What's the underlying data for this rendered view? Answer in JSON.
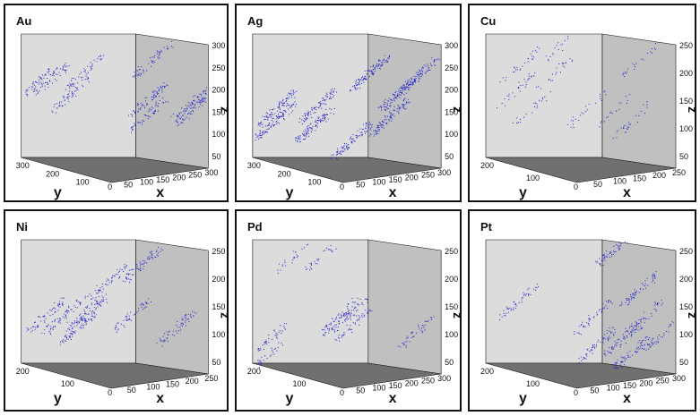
{
  "colors": {
    "left_wall": "#dcdcdc",
    "right_wall": "#c0c0c0",
    "floor": "#707070",
    "points": "#2222cc",
    "frame": "#111111"
  },
  "panels": [
    {
      "id": "au",
      "label": "Au",
      "axes": {
        "x": "x",
        "y": "y",
        "z": "z"
      },
      "x_ticks": [
        "0",
        "50",
        "100",
        "150",
        "200",
        "250",
        "300"
      ],
      "y_ticks": [
        "300",
        "200",
        "100"
      ],
      "z_ticks": [
        "300",
        "250",
        "200",
        "150",
        "100",
        "50"
      ],
      "density": "medium",
      "clusters": "upper-left diagonal band and lower center"
    },
    {
      "id": "ag",
      "label": "Ag",
      "axes": {
        "x": "x",
        "y": "y",
        "z": "z"
      },
      "x_ticks": [
        "0",
        "50",
        "100",
        "150",
        "200",
        "250",
        "300"
      ],
      "y_ticks": [
        "300",
        "200",
        "100"
      ],
      "z_ticks": [
        "300",
        "250",
        "200",
        "150",
        "100",
        "50"
      ],
      "density": "high",
      "clusters": "dense throughout"
    },
    {
      "id": "cu",
      "label": "Cu",
      "axes": {
        "x": "x",
        "y": "y",
        "z": "z"
      },
      "x_ticks": [
        "0",
        "50",
        "100",
        "150",
        "200",
        "250"
      ],
      "y_ticks": [
        "200",
        "100"
      ],
      "z_ticks": [
        "250",
        "200",
        "150",
        "100",
        "50"
      ],
      "density": "low",
      "clusters": "sparse, lower left and right wall"
    },
    {
      "id": "ni",
      "label": "Ni",
      "axes": {
        "x": "x",
        "y": "y",
        "z": "z"
      },
      "x_ticks": [
        "0",
        "50",
        "100",
        "150",
        "200",
        "250"
      ],
      "y_ticks": [
        "200",
        "100"
      ],
      "z_ticks": [
        "250",
        "200",
        "150",
        "100",
        "50"
      ],
      "density": "medium",
      "clusters": "diagonal streaks"
    },
    {
      "id": "pd",
      "label": "Pd",
      "axes": {
        "x": "x",
        "y": "y",
        "z": "z"
      },
      "x_ticks": [
        "0",
        "50",
        "100",
        "150",
        "200",
        "250",
        "300"
      ],
      "y_ticks": [
        "200",
        "100"
      ],
      "z_ticks": [
        "250",
        "200",
        "150",
        "100",
        "50"
      ],
      "density": "low-medium",
      "clusters": "scattered blobs"
    },
    {
      "id": "pt",
      "label": "Pt",
      "axes": {
        "x": "x",
        "y": "y",
        "z": "z"
      },
      "x_ticks": [
        "0",
        "50",
        "100",
        "150",
        "200",
        "250",
        "300"
      ],
      "y_ticks": [
        "200",
        "100"
      ],
      "z_ticks": [
        "250",
        "200",
        "150",
        "100",
        "50"
      ],
      "density": "medium",
      "clusters": "elongated diagonal blobs"
    }
  ]
}
